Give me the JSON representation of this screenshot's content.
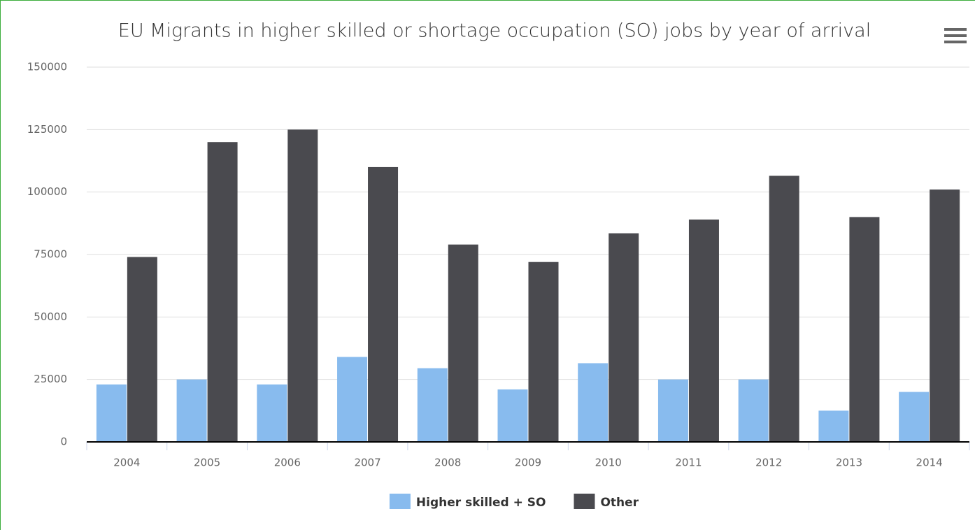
{
  "chart_data": {
    "type": "bar",
    "title": "EU Migrants in higher skilled or shortage occupation (SO) jobs by year of arrival",
    "categories": [
      "2004",
      "2005",
      "2006",
      "2007",
      "2008",
      "2009",
      "2010",
      "2011",
      "2012",
      "2013",
      "2014"
    ],
    "series": [
      {
        "name": "Higher skilled + SO",
        "color": "#88bbee",
        "values": [
          23000,
          25000,
          23000,
          34000,
          29500,
          21000,
          31500,
          25000,
          25000,
          12500,
          20000
        ]
      },
      {
        "name": "Other",
        "color": "#4a4a4f",
        "values": [
          74000,
          120000,
          125000,
          110000,
          79000,
          72000,
          83500,
          89000,
          106500,
          90000,
          101000
        ]
      }
    ],
    "ylim": [
      0,
      150000
    ],
    "yticks": [
      0,
      25000,
      50000,
      75000,
      100000,
      125000,
      150000
    ],
    "grid": true,
    "legend": "bottom"
  }
}
